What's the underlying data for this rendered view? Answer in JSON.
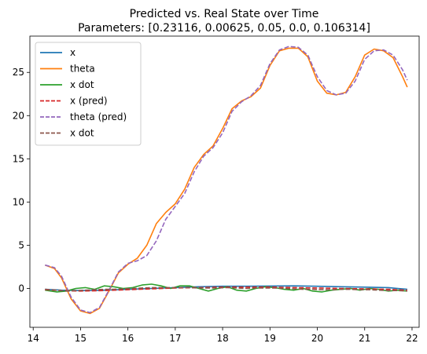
{
  "chart_data": {
    "type": "line",
    "title": "Predicted vs. Real State over Time",
    "subtitle": "Parameters: [0.23116, 0.00625, 0.05, 0.0, 0.106314]",
    "xlabel": "",
    "ylabel": "",
    "xlim": [
      13.93,
      22.15
    ],
    "ylim": [
      -4.5,
      29.2
    ],
    "xticks": [
      14,
      15,
      16,
      17,
      18,
      19,
      20,
      21,
      22
    ],
    "yticks": [
      0,
      5,
      10,
      15,
      20,
      25
    ],
    "grid": false,
    "legend_position": "top-left",
    "series": [
      {
        "name": "x",
        "color": "#1f77b4",
        "dash": "solid",
        "x": [
          14.25,
          14.6,
          15.0,
          15.5,
          16.0,
          16.5,
          17.0,
          17.5,
          18.0,
          18.5,
          19.0,
          19.5,
          20.0,
          20.5,
          21.0,
          21.5,
          21.9
        ],
        "y": [
          -0.1,
          -0.2,
          -0.25,
          -0.2,
          -0.1,
          0.0,
          0.1,
          0.2,
          0.25,
          0.25,
          0.28,
          0.3,
          0.25,
          0.2,
          0.15,
          0.1,
          -0.1
        ]
      },
      {
        "name": "theta",
        "color": "#ff7f0e",
        "dash": "solid",
        "x": [
          14.25,
          14.45,
          14.6,
          14.8,
          15.0,
          15.2,
          15.4,
          15.6,
          15.8,
          16.0,
          16.2,
          16.4,
          16.6,
          16.8,
          17.0,
          17.2,
          17.4,
          17.6,
          17.8,
          18.0,
          18.2,
          18.4,
          18.6,
          18.8,
          19.0,
          19.2,
          19.4,
          19.6,
          19.8,
          20.0,
          20.2,
          20.4,
          20.6,
          20.8,
          21.0,
          21.2,
          21.4,
          21.6,
          21.8,
          21.9
        ],
        "y": [
          2.7,
          2.3,
          1.2,
          -1.2,
          -2.6,
          -2.9,
          -2.3,
          -0.3,
          1.8,
          2.8,
          3.5,
          5.0,
          7.5,
          8.8,
          9.8,
          11.5,
          14.0,
          15.5,
          16.5,
          18.5,
          20.8,
          21.7,
          22.2,
          23.2,
          25.8,
          27.5,
          27.8,
          27.8,
          26.8,
          24.0,
          22.6,
          22.4,
          22.7,
          24.5,
          27.0,
          27.7,
          27.5,
          26.7,
          24.5,
          23.3
        ]
      },
      {
        "name": "x dot",
        "color": "#2ca02c",
        "dash": "solid",
        "x": [
          14.25,
          14.5,
          14.7,
          14.9,
          15.1,
          15.3,
          15.5,
          15.7,
          15.9,
          16.1,
          16.3,
          16.5,
          16.7,
          16.9,
          17.1,
          17.3,
          17.5,
          17.7,
          17.9,
          18.1,
          18.3,
          18.5,
          18.7,
          18.9,
          19.1,
          19.3,
          19.5,
          19.7,
          19.9,
          20.1,
          20.3,
          20.5,
          20.7,
          20.9,
          21.1,
          21.3,
          21.5,
          21.7,
          21.9
        ],
        "y": [
          -0.2,
          -0.4,
          -0.3,
          0.0,
          0.1,
          -0.1,
          0.3,
          0.2,
          0.0,
          0.1,
          0.4,
          0.5,
          0.3,
          0.0,
          0.3,
          0.3,
          0.0,
          -0.3,
          0.0,
          0.2,
          -0.2,
          -0.3,
          0.0,
          0.2,
          0.1,
          -0.1,
          -0.2,
          0.0,
          -0.3,
          -0.4,
          -0.2,
          -0.1,
          0.0,
          -0.2,
          0.0,
          -0.1,
          -0.3,
          -0.2,
          -0.3
        ]
      },
      {
        "name": "x (pred)",
        "color": "#d62728",
        "dash": "dashed",
        "x": [
          14.25,
          14.6,
          15.0,
          15.5,
          16.0,
          16.5,
          17.0,
          17.5,
          18.0,
          18.5,
          19.0,
          19.5,
          20.0,
          20.5,
          21.0,
          21.5,
          21.9
        ],
        "y": [
          -0.15,
          -0.25,
          -0.3,
          -0.25,
          -0.15,
          -0.05,
          0.05,
          0.1,
          0.15,
          0.15,
          0.15,
          0.1,
          0.05,
          0.0,
          -0.05,
          -0.1,
          -0.2
        ]
      },
      {
        "name": "theta (pred)",
        "color": "#9467bd",
        "dash": "dashed",
        "x": [
          14.25,
          14.45,
          14.6,
          14.8,
          15.0,
          15.2,
          15.4,
          15.6,
          15.8,
          16.0,
          16.2,
          16.4,
          16.6,
          16.8,
          17.0,
          17.2,
          17.4,
          17.6,
          17.8,
          18.0,
          18.2,
          18.4,
          18.6,
          18.8,
          19.0,
          19.2,
          19.4,
          19.6,
          19.8,
          20.0,
          20.2,
          20.4,
          20.6,
          20.8,
          21.0,
          21.2,
          21.4,
          21.6,
          21.8,
          21.9
        ],
        "y": [
          2.7,
          2.4,
          1.4,
          -1.0,
          -2.5,
          -2.8,
          -2.2,
          -0.2,
          1.9,
          2.9,
          3.2,
          3.8,
          5.5,
          8.0,
          9.5,
          11.0,
          13.5,
          15.3,
          16.3,
          18.0,
          20.5,
          21.6,
          22.3,
          23.5,
          26.0,
          27.6,
          28.0,
          27.9,
          27.0,
          24.5,
          22.9,
          22.4,
          22.6,
          24.0,
          26.5,
          27.5,
          27.6,
          27.0,
          25.3,
          24.1
        ]
      },
      {
        "name": "x dot",
        "color": "#8c564b",
        "dash": "dashed",
        "x": [
          14.25,
          14.5,
          14.7,
          14.9,
          15.1,
          15.3,
          15.5,
          15.7,
          15.9,
          16.1,
          16.3,
          16.5,
          16.7,
          16.9,
          17.1,
          17.3,
          17.5,
          17.7,
          17.9,
          18.1,
          18.3,
          18.5,
          18.7,
          18.9,
          19.1,
          19.3,
          19.5,
          19.7,
          19.9,
          20.1,
          20.3,
          20.5,
          20.7,
          20.9,
          21.1,
          21.3,
          21.5,
          21.7,
          21.9
        ],
        "y": [
          -0.1,
          -0.2,
          -0.3,
          -0.25,
          -0.2,
          -0.15,
          -0.1,
          -0.1,
          -0.05,
          0.0,
          0.05,
          0.1,
          0.1,
          0.1,
          0.1,
          0.1,
          0.05,
          0.05,
          0.05,
          0.1,
          0.05,
          0.0,
          0.05,
          0.05,
          0.05,
          0.0,
          -0.05,
          -0.1,
          -0.1,
          -0.15,
          -0.15,
          -0.1,
          -0.1,
          -0.15,
          -0.15,
          -0.2,
          -0.25,
          -0.25,
          -0.3
        ]
      }
    ]
  }
}
